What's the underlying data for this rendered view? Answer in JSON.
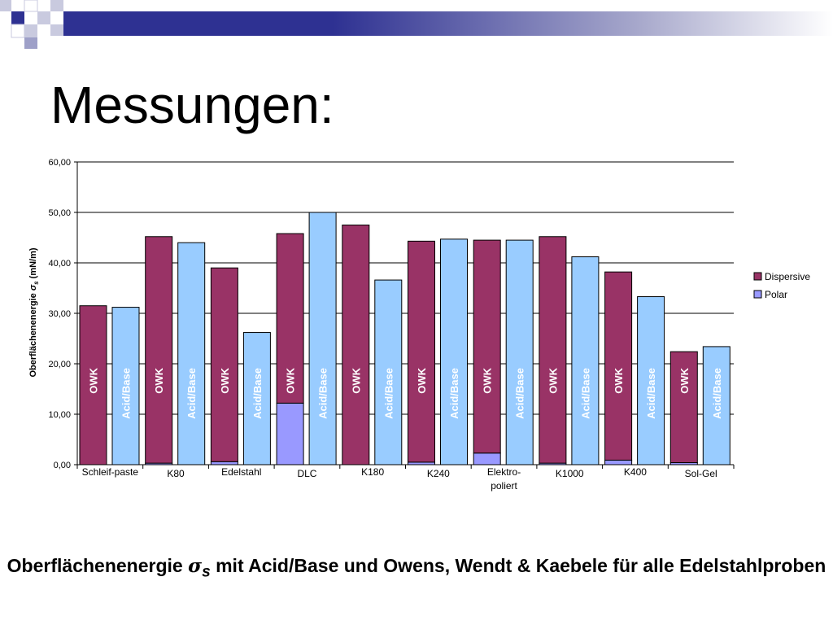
{
  "slide": {
    "title": "Messungen:",
    "caption_before": "Oberflächenenergie ",
    "caption_sigma": "σ",
    "caption_sub": "s",
    "caption_after": " mit Acid/Base und Owens, Wendt & Kaebele für alle Edelstahlproben"
  },
  "colors": {
    "dispersive": "#993366",
    "polar": "#9999ff",
    "acidbase": "#99ccff",
    "deco_dark": "#2e3192",
    "deco_light": "#c9cadf"
  },
  "chart_data": {
    "type": "bar",
    "ylabel_before": "Oberflächenenergie ",
    "ylabel_sigma": "σ",
    "ylabel_sub": "s",
    "ylabel_after": " (mN/m)",
    "ylim": [
      0,
      60
    ],
    "yticks": [
      "0,00",
      "10,00",
      "20,00",
      "30,00",
      "40,00",
      "50,00",
      "60,00"
    ],
    "categories": [
      {
        "label": [
          "Schleif-paste"
        ]
      },
      {
        "label": [
          "K80"
        ]
      },
      {
        "label": [
          "Edelstahl"
        ]
      },
      {
        "label": [
          "DLC"
        ]
      },
      {
        "label": [
          "K180"
        ]
      },
      {
        "label": [
          "K240"
        ]
      },
      {
        "label": [
          "Elektro-",
          "poliert"
        ]
      },
      {
        "label": [
          "K1000"
        ]
      },
      {
        "label": [
          "K400"
        ]
      },
      {
        "label": [
          "Sol-Gel"
        ]
      }
    ],
    "owk_label": "OWK",
    "acidbase_label": "Acid/Base",
    "owk": [
      {
        "polar": 0.0,
        "dispersive": 31.5
      },
      {
        "polar": 0.3,
        "dispersive": 44.9
      },
      {
        "polar": 0.6,
        "dispersive": 38.4
      },
      {
        "polar": 12.2,
        "dispersive": 33.6
      },
      {
        "polar": 0.0,
        "dispersive": 47.5
      },
      {
        "polar": 0.5,
        "dispersive": 43.8
      },
      {
        "polar": 2.3,
        "dispersive": 42.2
      },
      {
        "polar": 0.3,
        "dispersive": 44.9
      },
      {
        "polar": 0.9,
        "dispersive": 37.3
      },
      {
        "polar": 0.4,
        "dispersive": 22.0
      }
    ],
    "acidbase": [
      31.2,
      44.0,
      26.2,
      50.0,
      36.6,
      44.7,
      44.5,
      41.2,
      33.3,
      23.4
    ],
    "legend": [
      {
        "name": "Dispersive",
        "key": "dispersive"
      },
      {
        "name": "Polar",
        "key": "polar"
      }
    ],
    "legend_position": "right",
    "grid": true
  }
}
